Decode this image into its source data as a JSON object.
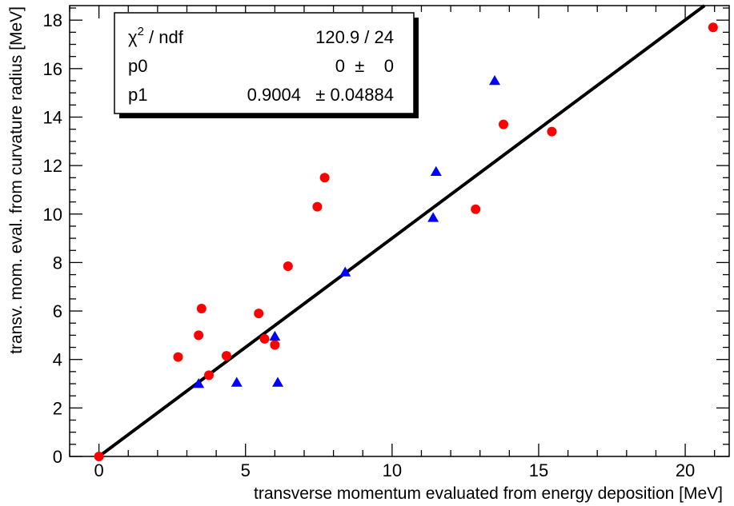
{
  "chart_data": {
    "type": "scatter",
    "xlabel": "transverse momentum evaluated from energy deposition [MeV]",
    "ylabel": "transv. mom. eval. from curvature radius [MeV]",
    "xlim": [
      -1,
      21.5
    ],
    "ylim": [
      0,
      18.6
    ],
    "x_ticks": [
      0,
      5,
      10,
      15,
      20
    ],
    "y_ticks": [
      0,
      2,
      4,
      6,
      8,
      10,
      12,
      14,
      16,
      18
    ],
    "grid": false,
    "series": [
      {
        "marker": "circle",
        "color": "#ff0000",
        "points": [
          [
            0.0,
            0.0
          ],
          [
            2.7,
            4.1
          ],
          [
            3.4,
            5.0
          ],
          [
            3.5,
            6.1
          ],
          [
            3.75,
            3.35
          ],
          [
            4.35,
            4.15
          ],
          [
            5.45,
            5.9
          ],
          [
            5.65,
            4.85
          ],
          [
            6.0,
            4.6
          ],
          [
            6.45,
            7.85
          ],
          [
            7.45,
            10.3
          ],
          [
            7.7,
            11.5
          ],
          [
            12.85,
            10.2
          ],
          [
            13.8,
            13.7
          ],
          [
            15.45,
            13.4
          ],
          [
            20.95,
            17.7
          ]
        ]
      },
      {
        "marker": "triangle",
        "color": "#0000ff",
        "points": [
          [
            3.4,
            3.0
          ],
          [
            4.7,
            3.05
          ],
          [
            6.0,
            4.95
          ],
          [
            6.1,
            3.05
          ],
          [
            8.4,
            7.6
          ],
          [
            11.4,
            9.85
          ],
          [
            11.5,
            11.75
          ],
          [
            13.5,
            15.5
          ]
        ]
      }
    ],
    "fit_line": {
      "p0": 0,
      "p1": 0.9004,
      "x_range": [
        0,
        21.5
      ],
      "color": "#000000"
    },
    "stats_box": {
      "rows": [
        {
          "label": "χ",
          "label_sup": "2",
          "label_suffix": " / ndf",
          "value": "120.9 / 24"
        },
        {
          "label": "p0",
          "value": "0  ±    0"
        },
        {
          "label": "p1",
          "value": "0.9004   ± 0.04884"
        }
      ]
    }
  }
}
